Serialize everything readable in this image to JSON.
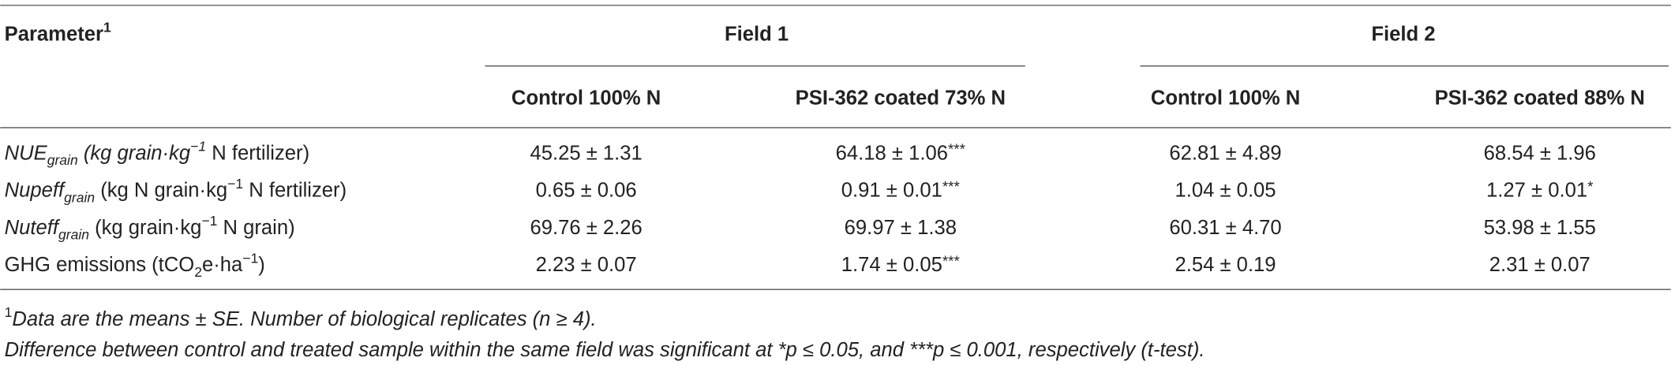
{
  "header": {
    "parameter": [
      {
        "text": "Parameter"
      },
      {
        "text": "1",
        "style": "sup"
      }
    ],
    "groups": [
      {
        "title": "Field 1",
        "columns": [
          "Control 100% N",
          "PSI-362 coated 73% N"
        ]
      },
      {
        "title": "Field 2",
        "columns": [
          "Control 100% N",
          "PSI-362 coated 88% N"
        ]
      }
    ]
  },
  "table": {
    "rows": [
      {
        "label": [
          {
            "text": "NUE",
            "style": "italic"
          },
          {
            "text": "grain",
            "style": "italic sub"
          },
          {
            "text": " (kg grain·kg",
            "style": "italic"
          },
          {
            "text": "−1",
            "style": "italic sup"
          },
          {
            "text": " N fertilizer)"
          }
        ],
        "cells": [
          {
            "text": "45.25 ± 1.31"
          },
          {
            "text": "64.18 ± 1.06",
            "mark": "***"
          },
          {
            "text": "62.81 ± 4.89"
          },
          {
            "text": "68.54 ± 1.96"
          }
        ]
      },
      {
        "label": [
          {
            "text": "Nupeff",
            "style": "italic"
          },
          {
            "text": "grain",
            "style": "italic sub"
          },
          {
            "text": " (kg N grain·kg"
          },
          {
            "text": "−1",
            "style": "sup"
          },
          {
            "text": " N fertilizer)"
          }
        ],
        "cells": [
          {
            "text": "0.65 ± 0.06"
          },
          {
            "text": "0.91 ± 0.01",
            "mark": "***"
          },
          {
            "text": "1.04 ± 0.05"
          },
          {
            "text": "1.27 ± 0.01",
            "mark": "*"
          }
        ]
      },
      {
        "label": [
          {
            "text": "Nuteff",
            "style": "italic"
          },
          {
            "text": "grain",
            "style": "italic sub"
          },
          {
            "text": " (kg grain·kg"
          },
          {
            "text": "−1",
            "style": "sup"
          },
          {
            "text": " N grain)"
          }
        ],
        "cells": [
          {
            "text": "69.76 ± 2.26"
          },
          {
            "text": "69.97 ± 1.38"
          },
          {
            "text": "60.31 ± 4.70"
          },
          {
            "text": "53.98 ± 1.55"
          }
        ]
      },
      {
        "label": [
          {
            "text": "GHG emissions (tCO"
          },
          {
            "text": "2",
            "style": "sub"
          },
          {
            "text": "e·ha"
          },
          {
            "text": "−1",
            "style": "sup"
          },
          {
            "text": ")"
          }
        ],
        "cells": [
          {
            "text": "2.23 ± 0.07"
          },
          {
            "text": "1.74 ± 0.05",
            "mark": "***"
          },
          {
            "text": "2.54 ± 0.19"
          },
          {
            "text": "2.31 ± 0.07"
          }
        ]
      }
    ]
  },
  "footnotes": [
    [
      {
        "text": "1",
        "style": "sup"
      },
      {
        "text": "Data are the means ± SE. Number of biological replicates (n ≥ 4).",
        "style": "italic"
      }
    ],
    [
      {
        "text": "Difference between control and treated sample within the same field was significant at *p ≤ 0.05, and ***p ≤ 0.001, respectively (t-test).",
        "style": "italic"
      }
    ]
  ]
}
